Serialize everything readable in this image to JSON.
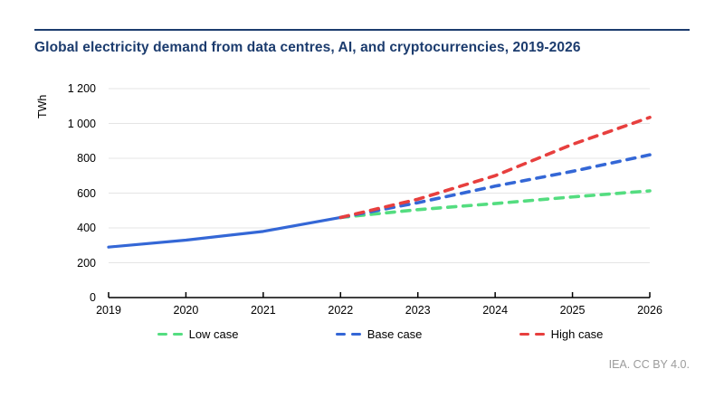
{
  "page": {
    "title": "Global electricity demand from data centres, AI, and cryptocurrencies, 2019-2026",
    "credit": "IEA. CC BY 4.0."
  },
  "chart_data": {
    "type": "line",
    "title": "Global electricity demand from data centres, AI, and cryptocurrencies, 2019-2026",
    "xlabel": "",
    "ylabel": "TWh",
    "xlim": [
      2019,
      2026
    ],
    "ylim": [
      0,
      1200
    ],
    "grid": true,
    "legend_position": "bottom",
    "x_ticks": [
      2019,
      2020,
      2021,
      2022,
      2023,
      2024,
      2025,
      2026
    ],
    "x_tick_labels": [
      "2019",
      "2020",
      "2021",
      "2022",
      "2023",
      "2024",
      "2025",
      "2026"
    ],
    "y_ticks": [
      0,
      200,
      400,
      600,
      800,
      1000,
      1200
    ],
    "y_tick_labels": [
      "0",
      "200",
      "400",
      "600",
      "800",
      "1 000",
      "1 200"
    ],
    "colors": {
      "accent_navy": "#1c3c6e",
      "historical_blue": "#3467d6",
      "low_green": "#54dd80",
      "base_blue": "#3467d6",
      "high_red": "#e73f3e",
      "gridline": "#e4e4e4",
      "axis": "#000000",
      "credit_gray": "#9b9b9b"
    },
    "series": [
      {
        "name": "Historical",
        "style": "solid",
        "color": "#3467d6",
        "in_legend": false,
        "x": [
          2019,
          2020,
          2021,
          2022
        ],
        "values": [
          290,
          330,
          380,
          460
        ]
      },
      {
        "name": "Low case",
        "style": "dashed",
        "color": "#54dd80",
        "in_legend": true,
        "x": [
          2022,
          2023,
          2024,
          2025,
          2026
        ],
        "values": [
          460,
          505,
          540,
          578,
          613
        ]
      },
      {
        "name": "Base case",
        "style": "dashed",
        "color": "#3467d6",
        "in_legend": true,
        "x": [
          2022,
          2023,
          2024,
          2025,
          2026
        ],
        "values": [
          460,
          545,
          640,
          725,
          820
        ]
      },
      {
        "name": "High case",
        "style": "dashed",
        "color": "#e73f3e",
        "in_legend": true,
        "x": [
          2022,
          2023,
          2024,
          2025,
          2026
        ],
        "values": [
          460,
          565,
          700,
          880,
          1035
        ]
      }
    ]
  }
}
